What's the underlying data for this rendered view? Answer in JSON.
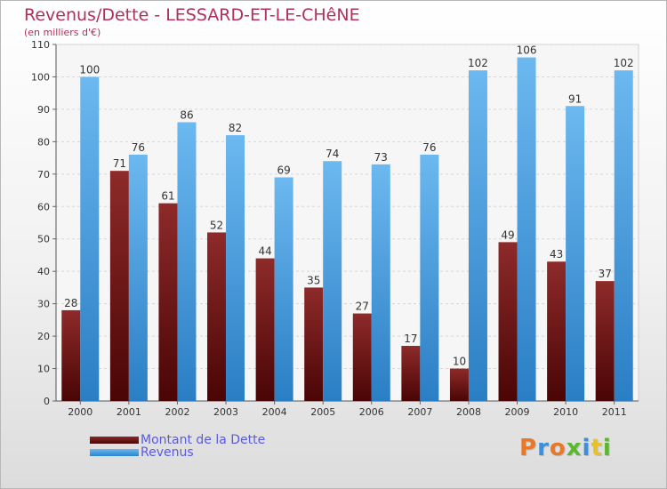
{
  "chart_data": {
    "type": "bar",
    "title": "Revenus/Dette - LESSARD-ET-LE-CHêNE",
    "subtitle": "(en milliers d'€)",
    "categories": [
      "2000",
      "2001",
      "2002",
      "2003",
      "2004",
      "2005",
      "2006",
      "2007",
      "2008",
      "2009",
      "2010",
      "2011"
    ],
    "series": [
      {
        "name": "Montant de la Dette",
        "values": [
          28,
          71,
          61,
          52,
          44,
          35,
          27,
          17,
          10,
          49,
          43,
          37
        ],
        "color": "#7a1515"
      },
      {
        "name": "Revenus",
        "values": [
          100,
          76,
          86,
          82,
          69,
          74,
          73,
          76,
          102,
          106,
          91,
          102
        ],
        "color": "#3d9ee6"
      }
    ],
    "ylim": [
      0,
      110
    ],
    "yticks": [
      0,
      10,
      20,
      30,
      40,
      50,
      60,
      70,
      80,
      90,
      100,
      110
    ],
    "grid": true,
    "legend_position": "bottom-left",
    "data_labels": true
  },
  "brand": {
    "logo_text": "Proxiti",
    "logo_colors": [
      "#e8782a",
      "#3d8fd8",
      "#e8782a",
      "#5ab82e",
      "#3d8fd8",
      "#e8c02a",
      "#5ab82e"
    ]
  },
  "colors": {
    "title": "#b0305a",
    "legend_text": "#5a5ae0"
  }
}
